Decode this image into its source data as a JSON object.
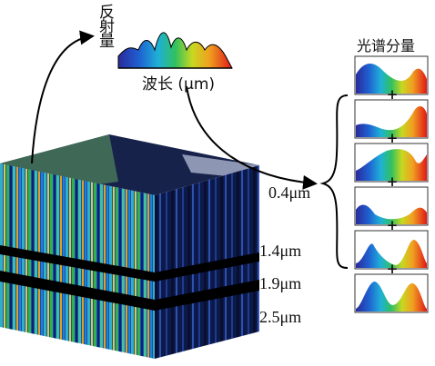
{
  "axis_label_vertical": "反射量",
  "axis_label_horizontal": "波长 (μm)",
  "components_title": "光谱分量",
  "wavelengths": [
    "0.4μm",
    "1.4μm",
    "1.9μm",
    "2.5μm"
  ],
  "operators": [
    "+",
    "+",
    "+",
    "+",
    "+"
  ]
}
